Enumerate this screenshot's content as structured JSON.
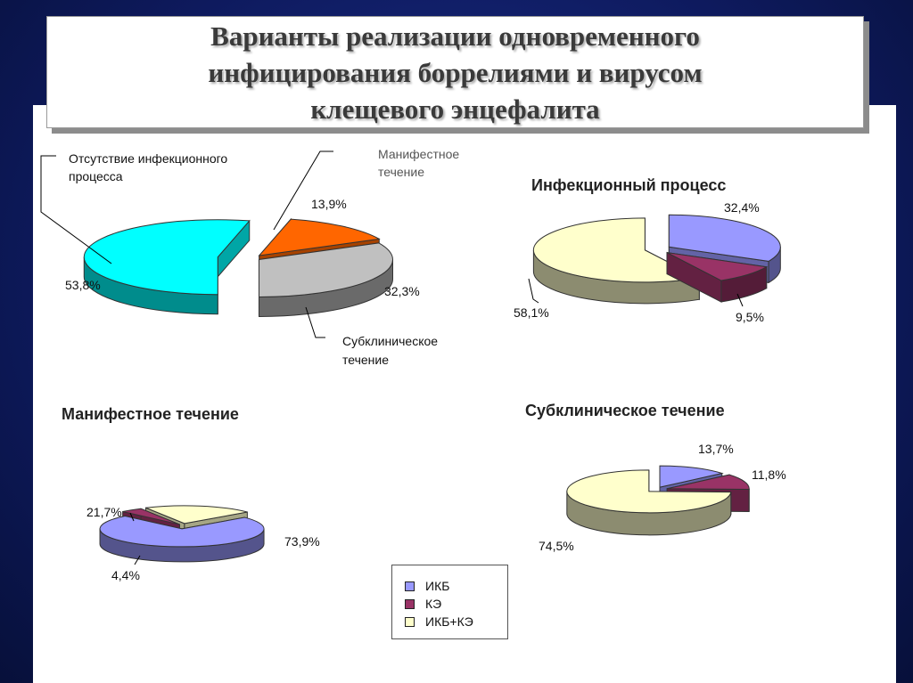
{
  "slide": {
    "title": "Варианты реализации одновременного\nинфицирования боррелиями и вирусом\nклещевого энцефалита"
  },
  "legend": {
    "items": [
      {
        "label": "ИКБ",
        "color": "#9999ff"
      },
      {
        "label": "КЭ",
        "color": "#993366"
      },
      {
        "label": "ИКБ+КЭ",
        "color": "#ffffcc"
      }
    ]
  },
  "chart_data": [
    {
      "type": "pie",
      "title": "",
      "slices": [
        {
          "name": "Отсутствие инфекционного процесса",
          "value": 53.8,
          "label": "53,8%",
          "color": "#00ffff"
        },
        {
          "name": "Манифестное течение",
          "value": 13.9,
          "label": "13,9%",
          "color": "#ff6600"
        },
        {
          "name": "Субклиническое течение",
          "value": 32.3,
          "label": "32,3%",
          "color": "#c0c0c0"
        }
      ],
      "category_labels": {
        "absent_1": "Отсутствие инфекционного",
        "absent_2": "процесса",
        "manifest_1": "Манифестное",
        "manifest_2": "течение",
        "subclin_1": "Субклиническое",
        "subclin_2": "течение"
      }
    },
    {
      "type": "pie",
      "title": "Инфекционный процесс",
      "slices": [
        {
          "name": "ИКБ",
          "value": 32.4,
          "label": "32,4%",
          "color": "#9999ff"
        },
        {
          "name": "КЭ",
          "value": 9.5,
          "label": "9,5%",
          "color": "#993366"
        },
        {
          "name": "ИКБ+КЭ",
          "value": 58.1,
          "label": "58,1%",
          "color": "#ffffcc"
        }
      ]
    },
    {
      "type": "pie",
      "title": "Манифестное течение",
      "slices": [
        {
          "name": "ИКБ",
          "value": 73.9,
          "label": "73,9%",
          "color": "#9999ff"
        },
        {
          "name": "КЭ",
          "value": 4.4,
          "label": "4,4%",
          "color": "#993366"
        },
        {
          "name": "ИКБ+КЭ",
          "value": 21.7,
          "label": "21,7%",
          "color": "#ffffcc"
        }
      ]
    },
    {
      "type": "pie",
      "title": "Субклиническое течение",
      "slices": [
        {
          "name": "ИКБ",
          "value": 13.7,
          "label": "13,7%",
          "color": "#9999ff"
        },
        {
          "name": "КЭ",
          "value": 11.8,
          "label": "11,8%",
          "color": "#993366"
        },
        {
          "name": "ИКБ+КЭ",
          "value": 74.5,
          "label": "74,5%",
          "color": "#ffffcc"
        }
      ]
    }
  ]
}
